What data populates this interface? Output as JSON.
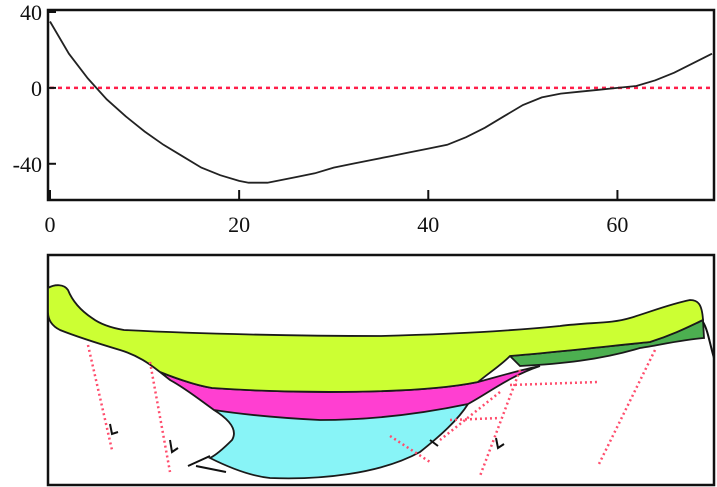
{
  "chart_data": {
    "type": "line",
    "title": "",
    "xlabel": "",
    "ylabel": "",
    "xlim": [
      0,
      70
    ],
    "ylim": [
      -60,
      40
    ],
    "xticks": [
      0,
      20,
      40,
      60
    ],
    "yticks": [
      40,
      0,
      -40
    ],
    "xtick_labels": [
      "0",
      "20",
      "40",
      "60"
    ],
    "ytick_labels": [
      "40",
      "0",
      "-40"
    ],
    "reference_line": {
      "y": 0,
      "style": "dashed",
      "color": "#ff1e4a"
    },
    "grid": false,
    "legend": "none",
    "series": [
      {
        "color": "#222222",
        "x": [
          0,
          2,
          4,
          6,
          8,
          10,
          12,
          14,
          16,
          18,
          20,
          21,
          22,
          23,
          24,
          26,
          28,
          30,
          32,
          34,
          36,
          38,
          40,
          42,
          44,
          46,
          48,
          50,
          52,
          54,
          56,
          58,
          60,
          62,
          64,
          66,
          68,
          70
        ],
        "y": [
          35,
          18,
          5,
          -6,
          -15,
          -23,
          -30,
          -36,
          -42,
          -46,
          -49,
          -50,
          -50,
          -50,
          -49,
          -47,
          -45,
          -42,
          -40,
          -38,
          -36,
          -34,
          -32,
          -30,
          -26,
          -21,
          -15,
          -9,
          -5,
          -3,
          -2,
          -1,
          0,
          1,
          4,
          8,
          13,
          18
        ]
      }
    ]
  },
  "section": {
    "colors": {
      "outline": "#1a1a1a",
      "yellow_green": "#ccff33",
      "dark_green": "#4caf50",
      "magenta": "#ff3fd1",
      "cyan": "#88f4f7",
      "fault": "#ff4d6d"
    },
    "layers": [
      "yellow-green unit",
      "dark-green unit",
      "magenta unit",
      "cyan unit"
    ]
  }
}
